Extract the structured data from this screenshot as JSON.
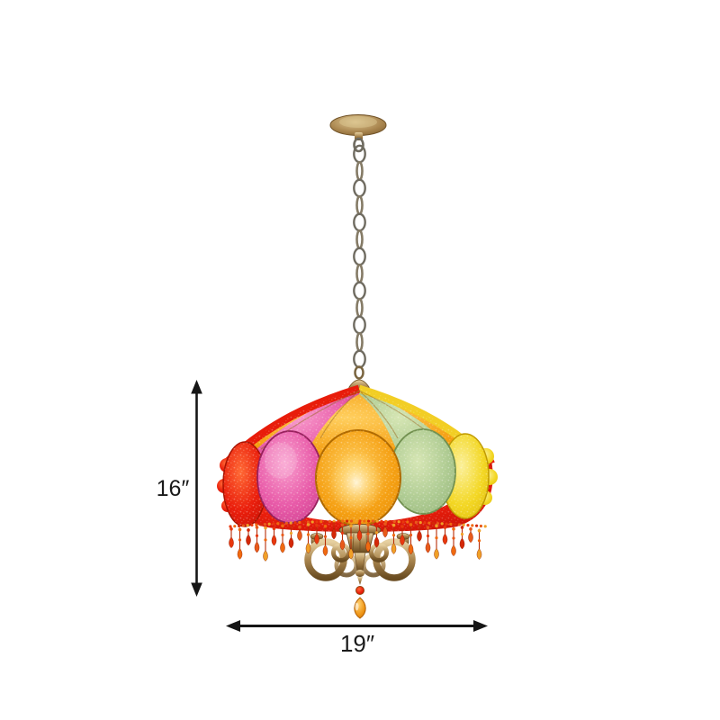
{
  "image": {
    "subject": "Bohemian multi-color sequin-beaded chandelier pendant lamp with antique brass canopy, hanging chain, scalloped shade of red, pink, orange, green and yellow medallions, red bead fringe, brass scroll arms and an amber crystal teardrop",
    "background": "#ffffff"
  },
  "dimensions": {
    "height_label": "16″",
    "width_label": "19″"
  },
  "colors": {
    "text": "#1a1a1a",
    "dimension_line": "#161616",
    "brass": "#a3804a",
    "chain": "#6f6b60",
    "red": "#e81c0a",
    "pink": "#e85aa8",
    "orange": "#f5a013",
    "green": "#aecb92",
    "yellow": "#f3d723",
    "amber": "#ee9312",
    "fringe_palette": [
      "#e8380e",
      "#f06a10",
      "#d42808",
      "#e85a1a",
      "#f0a028"
    ]
  }
}
